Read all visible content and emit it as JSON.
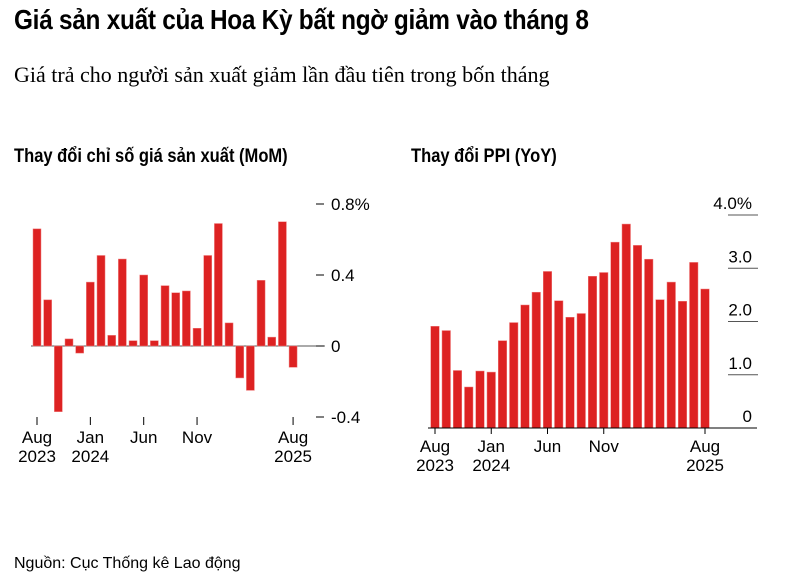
{
  "title": "Giá sản xuất của Hoa Kỳ bất ngờ giảm vào tháng 8",
  "subtitle": "Giá trả cho người sản xuất giảm lần đầu tiên trong bốn tháng",
  "source": "Nguồn: Cục Thống kê Lao động",
  "colors": {
    "bar": "#dd2222",
    "axis": "#555555"
  },
  "chart_data": [
    {
      "type": "bar",
      "title": "Thay đổi chỉ số giá sản xuất (MoM)",
      "xlabel": "",
      "ylabel": "",
      "ylim": [
        -0.4,
        0.8
      ],
      "y_ticks": [
        "0.8%",
        "0.4",
        "0",
        "-0.4"
      ],
      "y_tick_values": [
        0.8,
        0.4,
        0,
        -0.4
      ],
      "x_ticks": [
        {
          "index": 0,
          "line1": "Aug",
          "line2": "2023"
        },
        {
          "index": 5,
          "line1": "Jan",
          "line2": "2024"
        },
        {
          "index": 10,
          "line1": "Jun",
          "line2": ""
        },
        {
          "index": 15,
          "line1": "Nov",
          "line2": ""
        },
        {
          "index": 24,
          "line1": "Aug",
          "line2": "2025"
        }
      ],
      "categories": [
        "2023-08",
        "2023-09",
        "2023-10",
        "2023-11",
        "2023-12",
        "2024-01",
        "2024-02",
        "2024-03",
        "2024-04",
        "2024-05",
        "2024-06",
        "2024-07",
        "2024-08",
        "2024-09",
        "2024-10",
        "2024-11",
        "2024-12",
        "2025-01",
        "2025-02",
        "2025-03",
        "2025-04",
        "2025-05",
        "2025-06",
        "2025-07",
        "2025-08"
      ],
      "values": [
        0.66,
        0.26,
        -0.37,
        0.04,
        -0.04,
        0.36,
        0.51,
        0.06,
        0.49,
        0.03,
        0.4,
        0.03,
        0.34,
        0.3,
        0.31,
        0.1,
        0.51,
        0.69,
        0.13,
        -0.18,
        -0.25,
        0.37,
        0.05,
        0.7,
        -0.12
      ],
      "grid": false
    },
    {
      "type": "bar",
      "title": "Thay đổi PPI (YoY)",
      "xlabel": "",
      "ylabel": "",
      "ylim": [
        0,
        4.0
      ],
      "y_ticks": [
        "4.0%",
        "3.0",
        "2.0",
        "1.0",
        "0"
      ],
      "y_tick_values": [
        4,
        3,
        2,
        1,
        0
      ],
      "x_ticks": [
        {
          "index": 0,
          "line1": "Aug",
          "line2": "2023"
        },
        {
          "index": 5,
          "line1": "Jan",
          "line2": "2024"
        },
        {
          "index": 10,
          "line1": "Jun",
          "line2": ""
        },
        {
          "index": 15,
          "line1": "Nov",
          "line2": ""
        },
        {
          "index": 24,
          "line1": "Aug",
          "line2": "2025"
        }
      ],
      "categories": [
        "2023-08",
        "2023-09",
        "2023-10",
        "2023-11",
        "2023-12",
        "2024-01",
        "2024-02",
        "2024-03",
        "2024-04",
        "2024-05",
        "2024-06",
        "2024-07",
        "2024-08",
        "2024-09",
        "2024-10",
        "2024-11",
        "2024-12",
        "2025-01",
        "2025-02",
        "2025-03",
        "2025-04",
        "2025-05",
        "2025-06",
        "2025-07",
        "2025-08"
      ],
      "values": [
        1.91,
        1.83,
        1.08,
        0.77,
        1.07,
        1.05,
        1.64,
        1.98,
        2.31,
        2.55,
        2.94,
        2.39,
        2.08,
        2.15,
        2.85,
        2.92,
        3.49,
        3.83,
        3.43,
        3.17,
        2.41,
        2.74,
        2.38,
        3.11,
        2.61
      ],
      "grid": true
    }
  ]
}
